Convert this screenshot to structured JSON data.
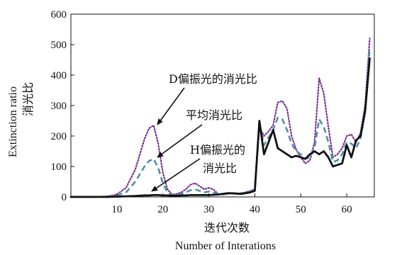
{
  "chart_data": {
    "type": "line",
    "xlabel_cn": "迭代次数",
    "xlabel_en": "Number of Interations",
    "ylabel_en": "Extinction ratio",
    "ylabel_cn": "消光比",
    "xlim": [
      0,
      66
    ],
    "ylim": [
      0,
      600
    ],
    "x_ticks": [
      10,
      20,
      30,
      40,
      50,
      60
    ],
    "y_ticks": [
      0,
      100,
      200,
      300,
      400,
      500,
      600
    ],
    "grid": false,
    "annotations": [
      {
        "text": "D偏振光的消光比",
        "target_series": "d"
      },
      {
        "text": "平均消光比",
        "target_series": "avg"
      },
      {
        "text": "H偏振光的",
        "target_series": "h"
      },
      {
        "text": "消光比",
        "target_series": "h"
      }
    ],
    "series": [
      {
        "key": "d",
        "color": "#7a2f95",
        "style": "dotted",
        "x": [
          0,
          5,
          8,
          10,
          12,
          14,
          15,
          16,
          17,
          18,
          19,
          20,
          21,
          22,
          23,
          24,
          25,
          26,
          27,
          28,
          29,
          30,
          31,
          32,
          33,
          34,
          35,
          36,
          37,
          38,
          39,
          40,
          41,
          42,
          43,
          44,
          45,
          46,
          47,
          48,
          49,
          50,
          51,
          52,
          53,
          54,
          55,
          56,
          57,
          58,
          59,
          60,
          61,
          62,
          63,
          64,
          65
        ],
        "values": [
          0,
          0,
          2,
          8,
          30,
          90,
          140,
          190,
          225,
          235,
          175,
          80,
          25,
          8,
          10,
          15,
          25,
          40,
          45,
          35,
          25,
          30,
          25,
          10,
          8,
          10,
          12,
          10,
          12,
          15,
          20,
          25,
          230,
          200,
          215,
          235,
          310,
          315,
          290,
          200,
          155,
          130,
          110,
          120,
          180,
          390,
          340,
          230,
          130,
          140,
          160,
          200,
          205,
          180,
          210,
          300,
          520
        ]
      },
      {
        "key": "avg",
        "color": "#4f8fa8",
        "style": "dashed",
        "x": [
          0,
          5,
          8,
          10,
          12,
          14,
          15,
          16,
          17,
          18,
          19,
          20,
          21,
          22,
          23,
          24,
          25,
          26,
          27,
          28,
          29,
          30,
          31,
          32,
          33,
          34,
          35,
          36,
          37,
          38,
          39,
          40,
          41,
          42,
          43,
          44,
          45,
          46,
          47,
          48,
          49,
          50,
          51,
          52,
          53,
          54,
          55,
          56,
          57,
          58,
          59,
          60,
          61,
          62,
          63,
          64,
          65
        ],
        "values": [
          0,
          0,
          1,
          4,
          15,
          50,
          75,
          100,
          118,
          125,
          95,
          45,
          15,
          6,
          7,
          10,
          15,
          22,
          25,
          20,
          15,
          18,
          15,
          9,
          8,
          10,
          12,
          11,
          12,
          14,
          18,
          22,
          240,
          170,
          195,
          220,
          260,
          255,
          220,
          175,
          150,
          140,
          125,
          130,
          160,
          255,
          230,
          180,
          115,
          120,
          140,
          180,
          175,
          160,
          190,
          280,
          490
        ]
      },
      {
        "key": "h",
        "color": "#111111",
        "style": "solid",
        "x": [
          0,
          5,
          8,
          10,
          12,
          14,
          15,
          16,
          17,
          18,
          19,
          20,
          21,
          22,
          23,
          24,
          25,
          26,
          27,
          28,
          29,
          30,
          31,
          32,
          33,
          34,
          35,
          36,
          37,
          38,
          39,
          40,
          41,
          42,
          43,
          44,
          45,
          46,
          47,
          48,
          49,
          50,
          51,
          52,
          53,
          54,
          55,
          56,
          57,
          58,
          59,
          60,
          61,
          62,
          63,
          64,
          65
        ],
        "values": [
          0,
          0,
          0,
          1,
          2,
          3,
          4,
          5,
          5,
          6,
          6,
          5,
          5,
          4,
          4,
          5,
          5,
          6,
          6,
          6,
          6,
          6,
          7,
          8,
          10,
          12,
          12,
          11,
          10,
          12,
          15,
          20,
          250,
          140,
          180,
          220,
          160,
          150,
          140,
          130,
          135,
          130,
          125,
          140,
          150,
          140,
          150,
          130,
          100,
          105,
          110,
          170,
          130,
          185,
          200,
          280,
          455
        ]
      }
    ]
  }
}
